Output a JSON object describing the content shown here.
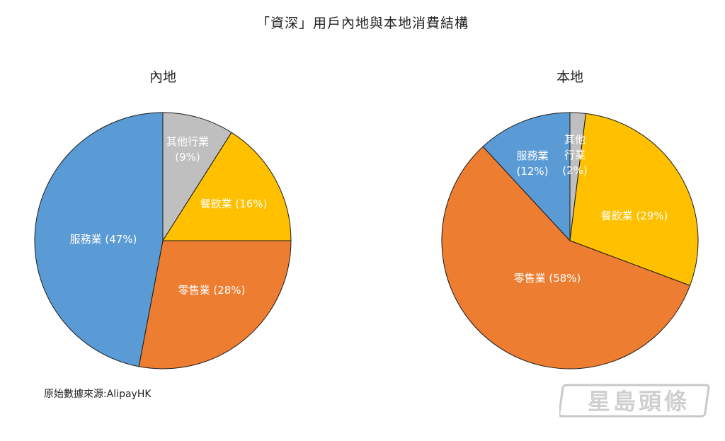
{
  "title": "「資深」用戶內地與本地消費結構",
  "source": "原始數據來源:AlipayHK",
  "watermark_text": "星島頭條",
  "chart_data": [
    {
      "type": "pie",
      "title": "內地",
      "slices": [
        {
          "label": "其他行業",
          "value": 9,
          "value_text": "(9%)",
          "color": "#bfbfbf"
        },
        {
          "label": "餐飲業",
          "value": 16,
          "value_text": "(16%)",
          "color": "#ffc000"
        },
        {
          "label": "零售業",
          "value": 28,
          "value_text": "(28%)",
          "color": "#ed7d31"
        },
        {
          "label": "服務業",
          "value": 47,
          "value_text": "(47%)",
          "color": "#5b9bd5"
        }
      ]
    },
    {
      "type": "pie",
      "title": "本地",
      "slices": [
        {
          "label": "其他行業",
          "value": 2,
          "value_text": "(2%)",
          "color": "#bfbfbf"
        },
        {
          "label": "餐飲業",
          "value": 29,
          "value_text": "(29%)",
          "color": "#ffc000"
        },
        {
          "label": "零售業",
          "value": 58,
          "value_text": "(58%)",
          "color": "#ed7d31"
        },
        {
          "label": "服務業",
          "value": 12,
          "value_text": "(12%)",
          "color": "#5b9bd5"
        }
      ]
    }
  ]
}
